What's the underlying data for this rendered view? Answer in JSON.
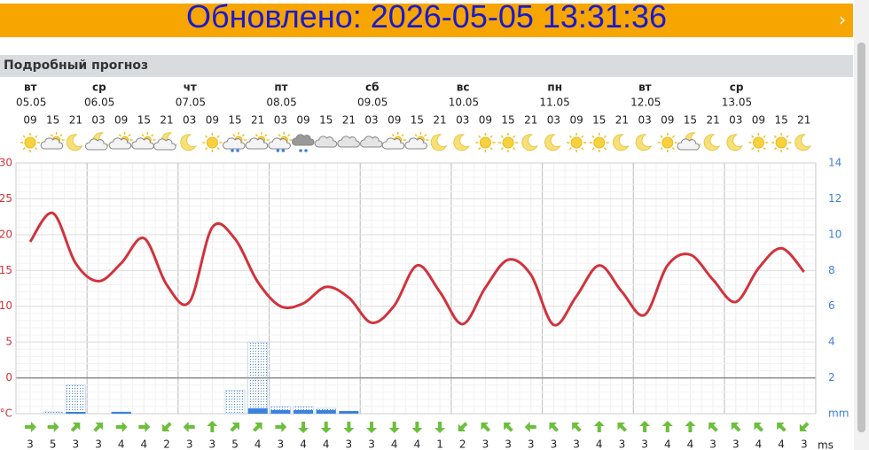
{
  "header": {
    "title": "Обновлено: 2026-05-05 13:31:36"
  },
  "section": {
    "title": "Подробный прогноз"
  },
  "days": [
    {
      "name": "вт",
      "date": "05.05"
    },
    {
      "name": "ср",
      "date": "06.05"
    },
    {
      "name": "чт",
      "date": "07.05"
    },
    {
      "name": "пт",
      "date": "08.05"
    },
    {
      "name": "сб",
      "date": "09.05"
    },
    {
      "name": "вс",
      "date": "10.05"
    },
    {
      "name": "пн",
      "date": "11.05"
    },
    {
      "name": "вт",
      "date": "12.05"
    },
    {
      "name": "ср",
      "date": "13.05"
    }
  ],
  "times": [
    "09",
    "15",
    "21",
    "03",
    "09",
    "15",
    "21",
    "03",
    "09",
    "15",
    "21",
    "03",
    "09",
    "15",
    "21",
    "03",
    "09",
    "15",
    "21",
    "03",
    "09",
    "15",
    "21",
    "03",
    "09",
    "15",
    "21",
    "03",
    "09",
    "15",
    "21",
    "03",
    "09",
    "15",
    "21"
  ],
  "temperature": {
    "color": "#d2323c",
    "ylim": [
      -5,
      30
    ],
    "yticks": [
      {
        "value": -5,
        "label": "°C"
      },
      0,
      5,
      10,
      15,
      20,
      25,
      30
    ],
    "values": [
      19,
      23,
      16,
      13.5,
      16,
      19.5,
      13,
      10.6,
      21,
      19.4,
      13.4,
      10,
      10.4,
      12.7,
      11.2,
      7.7,
      10.1,
      15.7,
      12,
      7.5,
      12.6,
      16.5,
      14.4,
      7.4,
      11.4,
      15.7,
      12,
      8.8,
      15.7,
      17.2,
      13.7,
      10.6,
      15.3,
      18.1,
      14.8
    ]
  },
  "precipitation": {
    "color": "#3c82dc",
    "ylim": [
      0,
      14
    ],
    "yticks": [
      {
        "value": 0,
        "label": "mm"
      },
      2,
      4,
      6,
      8,
      10,
      12,
      14
    ],
    "values": [
      null,
      null,
      0.1,
      null,
      0.1,
      null,
      null,
      null,
      null,
      null,
      0.3,
      0.2,
      0.2,
      0.2,
      0.15,
      null,
      null,
      null,
      null,
      null,
      null,
      null,
      null,
      null,
      null,
      null,
      null,
      null,
      null,
      null,
      null,
      null,
      null,
      null,
      null
    ],
    "possible": [
      null,
      0.1,
      1.6,
      null,
      0.1,
      null,
      null,
      null,
      null,
      1.3,
      4,
      0.4,
      0.4,
      0.3,
      null,
      null,
      null,
      null,
      null,
      null,
      null,
      null,
      null,
      null,
      null,
      null,
      null,
      null,
      null,
      null,
      null,
      null,
      null,
      null,
      null
    ]
  },
  "wind": {
    "unit": "ms",
    "color": "#6cbf3c",
    "values": [
      3,
      5,
      3,
      3,
      4,
      4,
      2,
      3,
      3,
      5,
      4,
      3,
      4,
      4,
      3,
      3,
      4,
      4,
      1,
      2,
      3,
      3,
      3,
      3,
      3,
      4,
      3,
      3,
      4,
      4,
      3,
      3,
      4,
      4,
      3
    ],
    "directions": [
      0,
      0,
      -45,
      -45,
      0,
      0,
      135,
      180,
      -90,
      -45,
      -45,
      0,
      90,
      90,
      90,
      90,
      90,
      90,
      90,
      135,
      -135,
      -135,
      180,
      -135,
      -135,
      -90,
      -135,
      -90,
      -90,
      -90,
      -135,
      -135,
      -135,
      -135,
      135
    ]
  }
}
